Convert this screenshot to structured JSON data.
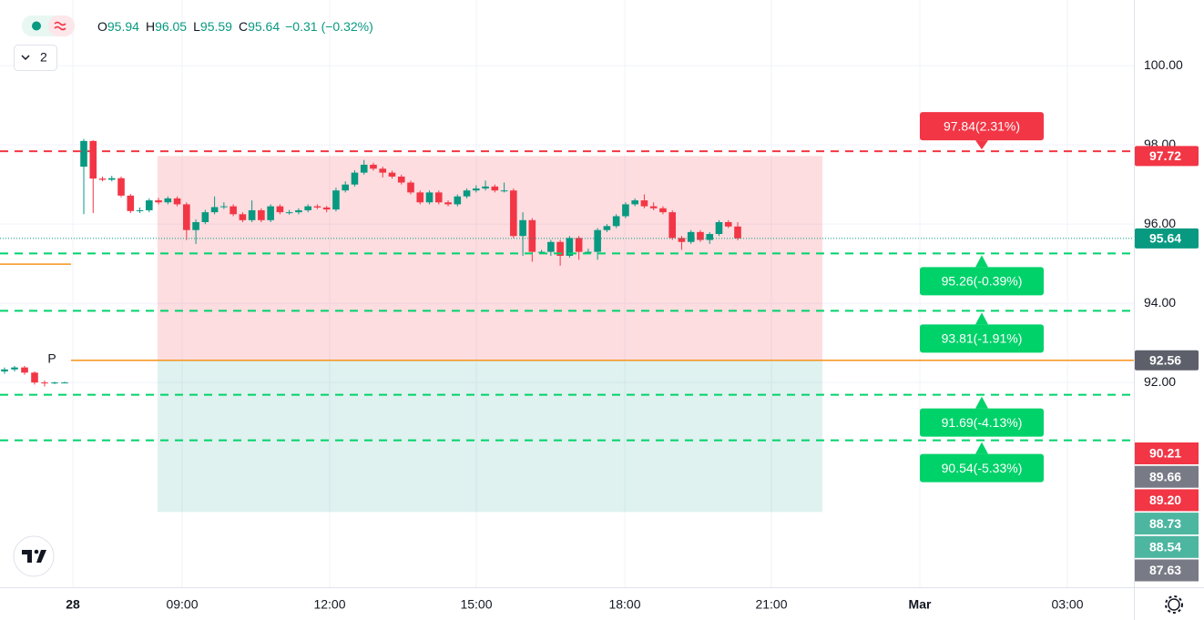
{
  "chart_data": {
    "type": "candlestick",
    "legend": [
      {
        "key": "O",
        "value": 95.94
      },
      {
        "key": "H",
        "value": 96.05
      },
      {
        "key": "L",
        "value": 95.59
      },
      {
        "key": "C",
        "value": 95.64
      }
    ],
    "change": {
      "value": -0.31,
      "label": "−0.31"
    },
    "change_pct": {
      "value": -0.32,
      "label": "(−0.32%)"
    },
    "collapsed_count": 2,
    "up_color": "#089981",
    "down_color": "#f23645",
    "open": [
      92.28,
      92.33,
      92.38,
      92.25,
      92.0,
      91.98,
      92.0,
      97.45,
      98.1,
      97.15,
      97.12,
      97.16,
      96.72,
      96.33,
      96.35,
      96.6,
      96.55,
      96.65,
      96.5,
      95.85,
      96.05,
      96.3,
      96.43,
      96.45,
      96.25,
      96.1,
      96.35,
      96.1,
      96.45,
      96.3,
      96.3,
      96.35,
      96.45,
      96.42,
      96.37,
      96.85,
      97.0,
      97.3,
      97.5,
      97.4,
      97.3,
      97.2,
      97.05,
      96.8,
      96.55,
      96.8,
      96.55,
      96.5,
      96.7,
      96.85,
      96.9,
      96.95,
      96.85,
      96.85,
      95.7,
      96.1,
      95.3,
      95.3,
      95.55,
      95.2,
      95.65,
      95.3,
      95.3,
      95.85,
      95.95,
      96.2,
      96.5,
      96.6,
      96.45,
      96.4,
      96.3,
      95.65,
      95.55,
      95.8,
      95.6,
      95.75,
      96.05,
      95.94
    ],
    "high": [
      92.38,
      92.42,
      92.42,
      92.28,
      92.05,
      92.02,
      92.02,
      98.15,
      98.12,
      97.2,
      97.22,
      97.2,
      96.76,
      96.42,
      96.65,
      96.66,
      96.7,
      96.7,
      96.55,
      96.12,
      96.36,
      96.7,
      96.55,
      96.5,
      96.3,
      96.6,
      96.4,
      96.5,
      96.5,
      96.36,
      96.4,
      96.5,
      96.5,
      96.46,
      96.92,
      97.08,
      97.36,
      97.62,
      97.55,
      97.45,
      97.35,
      97.25,
      97.1,
      96.85,
      96.85,
      96.85,
      96.6,
      96.75,
      96.9,
      96.98,
      97.1,
      97.0,
      97.05,
      96.9,
      96.3,
      96.15,
      95.35,
      95.6,
      95.6,
      95.7,
      95.7,
      95.38,
      95.9,
      96.0,
      96.25,
      96.55,
      96.65,
      96.75,
      96.55,
      96.45,
      96.35,
      95.7,
      95.85,
      95.85,
      95.8,
      96.1,
      96.1,
      96.05
    ],
    "low": [
      92.22,
      92.28,
      92.2,
      91.95,
      91.9,
      91.96,
      91.98,
      96.25,
      96.28,
      97.08,
      97.08,
      96.68,
      96.28,
      96.28,
      96.3,
      96.5,
      96.5,
      96.45,
      95.6,
      95.5,
      96.0,
      96.25,
      96.38,
      96.2,
      96.05,
      96.05,
      96.05,
      96.05,
      96.25,
      96.24,
      96.25,
      96.3,
      96.38,
      96.3,
      96.32,
      96.8,
      96.95,
      97.25,
      97.35,
      97.18,
      97.15,
      97.0,
      96.75,
      96.5,
      96.5,
      96.5,
      96.45,
      96.45,
      96.65,
      96.8,
      96.85,
      96.8,
      96.8,
      95.65,
      95.2,
      95.05,
      95.25,
      95.2,
      94.95,
      95.15,
      95.1,
      95.25,
      95.1,
      95.8,
      95.9,
      96.15,
      96.45,
      96.4,
      96.35,
      96.25,
      95.6,
      95.35,
      95.5,
      95.55,
      95.5,
      95.7,
      95.9,
      95.59
    ],
    "close": [
      92.33,
      92.38,
      92.25,
      92.0,
      91.98,
      92.0,
      92.0,
      98.1,
      97.15,
      97.12,
      97.16,
      96.72,
      96.33,
      96.35,
      96.6,
      96.55,
      96.65,
      96.5,
      95.85,
      96.05,
      96.3,
      96.43,
      96.45,
      96.25,
      96.1,
      96.35,
      96.1,
      96.45,
      96.3,
      96.3,
      96.35,
      96.45,
      96.42,
      96.37,
      96.85,
      97.0,
      97.3,
      97.5,
      97.4,
      97.3,
      97.2,
      97.05,
      96.8,
      96.55,
      96.8,
      96.55,
      96.5,
      96.7,
      96.85,
      96.9,
      96.95,
      96.85,
      96.85,
      95.7,
      96.1,
      95.3,
      95.3,
      95.55,
      95.2,
      95.65,
      95.3,
      95.3,
      95.85,
      95.95,
      96.2,
      96.5,
      96.6,
      96.45,
      96.4,
      96.3,
      95.65,
      95.55,
      95.8,
      95.6,
      95.75,
      96.05,
      95.94,
      95.64
    ],
    "ylim": [
      86.83,
      101.66
    ],
    "yticks": [
      {
        "value": 92,
        "label": "92.00"
      },
      {
        "value": 94,
        "label": "94.00"
      },
      {
        "value": 96,
        "label": "96.00"
      },
      {
        "value": 98,
        "label": "98.00"
      },
      {
        "value": 100,
        "label": "100.00"
      }
    ],
    "x_labels": [
      "28",
      "09:00",
      "12:00",
      "15:00",
      "18:00",
      "21:00",
      "Mar",
      "03:00"
    ],
    "grid": true,
    "zone": {
      "top": 97.72,
      "entry": 92.56,
      "bottom": 88.73,
      "stop_color": "rgba(242,54,69,0.17)",
      "target_color": "rgba(8,153,129,0.13)"
    },
    "levels": [
      {
        "value": 97.84,
        "label": "97.84(2.31%)",
        "color": "#f23645"
      },
      {
        "value": 95.26,
        "label": "95.26(-0.39%)",
        "color": "#00d26a"
      },
      {
        "value": 93.81,
        "label": "93.81(-1.91%)",
        "color": "#00d26a"
      },
      {
        "value": 91.69,
        "label": "91.69(-4.13%)",
        "color": "#00d26a"
      },
      {
        "value": 90.54,
        "label": "90.54(-5.33%)",
        "color": "#00d26a"
      }
    ],
    "prev_close_line": {
      "value": 94.99,
      "color": "#f7931a"
    },
    "pivot_line": {
      "value": 92.56,
      "label": "P",
      "color": "#f7931a"
    },
    "price_badges": [
      {
        "value": 97.72,
        "color": "#f23645"
      },
      {
        "value": 95.64,
        "color": "#089981"
      },
      {
        "value": 92.56,
        "color": "#5d606b"
      }
    ],
    "stacked_badges": [
      {
        "value": 90.21,
        "color": "#f23645"
      },
      {
        "value": 89.66,
        "color": "#787b86"
      },
      {
        "value": 89.2,
        "label": "89.20",
        "color": "#f23645"
      },
      {
        "value": 88.73,
        "color": "#4db6a0"
      },
      {
        "value": 88.54,
        "color": "#4db6a0"
      },
      {
        "value": 87.63,
        "color": "#787b86"
      }
    ]
  }
}
